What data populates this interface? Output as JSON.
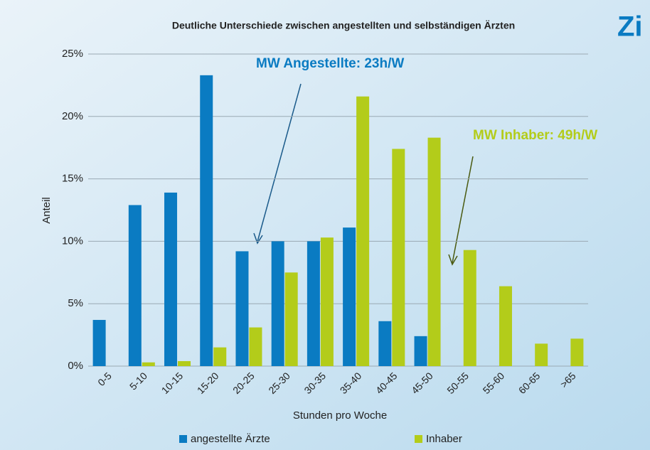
{
  "logo": "Zi",
  "chart_data": {
    "type": "bar",
    "title": "Deutliche Unterschiede zwischen angestellten und selbständigen Ärzten",
    "x_label": "Stunden pro Woche",
    "y_label": "Anteil",
    "categories": [
      "0-5",
      "5-10",
      "10-15",
      "15-20",
      "20-25",
      "25-30",
      "30-35",
      "35-40",
      "40-45",
      "45-50",
      "50-55",
      "55-60",
      "60-65",
      ">65"
    ],
    "series": [
      {
        "name": "angestellte Ärzte",
        "color": "#0a7bc2",
        "values": [
          3.7,
          12.9,
          13.9,
          23.3,
          9.2,
          10.0,
          10.0,
          11.1,
          3.6,
          2.4,
          0,
          0,
          0,
          0
        ]
      },
      {
        "name": "Inhaber",
        "color": "#b3cc1a",
        "values": [
          0,
          0.3,
          0.4,
          1.5,
          3.1,
          7.5,
          10.3,
          21.6,
          17.4,
          18.3,
          9.3,
          6.4,
          1.8,
          2.2
        ]
      }
    ],
    "ylim": [
      0,
      25
    ],
    "yticks": [
      {
        "value": 0,
        "label": "0%"
      },
      {
        "value": 5,
        "label": "5%"
      },
      {
        "value": 10,
        "label": "10%"
      },
      {
        "value": 15,
        "label": "15%"
      },
      {
        "value": 20,
        "label": "20%"
      },
      {
        "value": 25,
        "label": "25%"
      }
    ],
    "grid": true,
    "legend": "bottom",
    "annotations": [
      {
        "text": "MW Angestellte: 23h/W",
        "color": "#0a7bc2"
      },
      {
        "text": "MW Inhaber: 49h/W",
        "color": "#b3cc1a"
      }
    ]
  }
}
